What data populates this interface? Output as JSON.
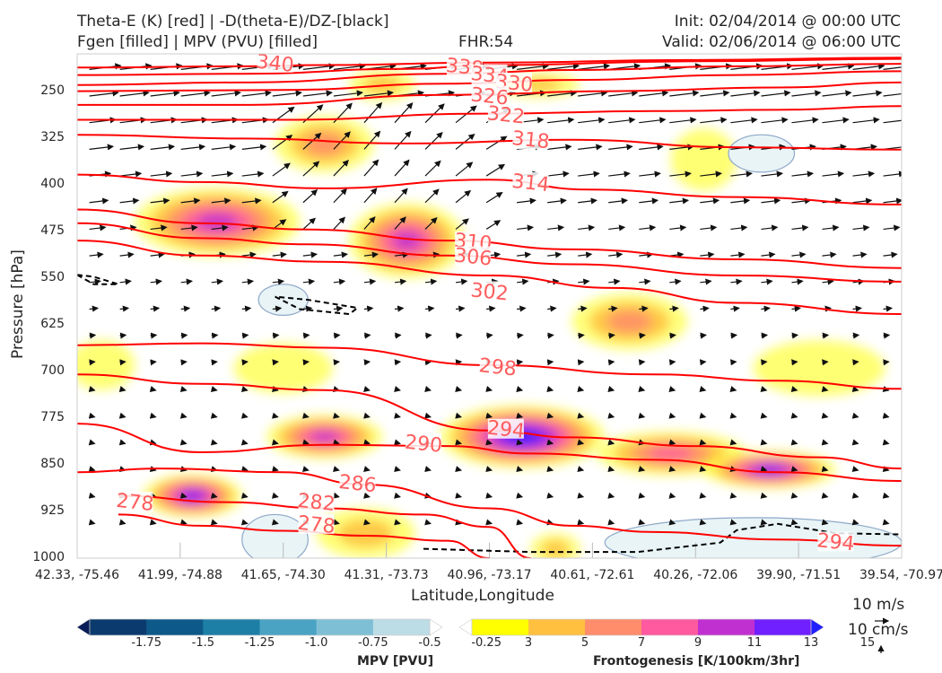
{
  "header": {
    "title_line1": "Theta-E (K) [red] | -D(theta-E)/DZ-[black]",
    "title_line2": "Fgen [filled] | MPV (PVU) [filled]",
    "fhr": "FHR:54",
    "init": "Init: 02/04/2014 @ 00:00 UTC",
    "valid": "Valid: 02/06/2014 @ 06:00 UTC"
  },
  "chart_data": {
    "type": "cross-section",
    "xlabel": "Latitude,Longitude",
    "ylabel": "Pressure [hPa]",
    "x_tick_labels": [
      "42.33, -75.46",
      "41.99, -74.88",
      "41.65, -74.30",
      "41.31, -73.73",
      "40.96, -73.17",
      "40.61, -72.61",
      "40.26, -72.06",
      "39.90, -71.51",
      "39.54, -70.97"
    ],
    "y_ticks": [
      250,
      325,
      400,
      475,
      550,
      625,
      700,
      775,
      850,
      925,
      1000
    ],
    "ylim": [
      1000,
      190
    ],
    "theta_e_contours": [
      {
        "label": "340",
        "points": [
          [
            0,
            212
          ],
          [
            0.2,
            210
          ],
          [
            0.3,
            208
          ],
          [
            0.5,
            204
          ],
          [
            0.75,
            200
          ],
          [
            1,
            196
          ]
        ]
      },
      {
        "label": "338",
        "points": [
          [
            0,
            224
          ],
          [
            0.2,
            222
          ],
          [
            0.4,
            214
          ],
          [
            0.5,
            208
          ],
          [
            0.75,
            202
          ],
          [
            1,
            198
          ]
        ]
      },
      {
        "label": "334",
        "points": [
          [
            0,
            240
          ],
          [
            0.2,
            236
          ],
          [
            0.45,
            222
          ],
          [
            0.6,
            216
          ],
          [
            0.8,
            210
          ],
          [
            1,
            206
          ]
        ]
      },
      {
        "label": "330",
        "points": [
          [
            0,
            250
          ],
          [
            0.25,
            248
          ],
          [
            0.45,
            238
          ],
          [
            0.6,
            232
          ],
          [
            0.8,
            224
          ],
          [
            1,
            218
          ]
        ]
      },
      {
        "label": "326",
        "points": [
          [
            0,
            272
          ],
          [
            0.2,
            272
          ],
          [
            0.45,
            256
          ],
          [
            0.65,
            250
          ],
          [
            0.85,
            244
          ],
          [
            1,
            236
          ]
        ]
      },
      {
        "label": "322",
        "points": [
          [
            0,
            296
          ],
          [
            0.25,
            296
          ],
          [
            0.5,
            286
          ],
          [
            0.7,
            282
          ],
          [
            0.85,
            280
          ],
          [
            1,
            274
          ]
        ]
      },
      {
        "label": "318",
        "points": [
          [
            0,
            320
          ],
          [
            0.2,
            326
          ],
          [
            0.4,
            334
          ],
          [
            0.6,
            328
          ],
          [
            0.8,
            340
          ],
          [
            1,
            344
          ]
        ]
      },
      {
        "label": "314",
        "points": [
          [
            0,
            384
          ],
          [
            0.15,
            396
          ],
          [
            0.3,
            406
          ],
          [
            0.5,
            392
          ],
          [
            0.62,
            408
          ],
          [
            0.8,
            420
          ],
          [
            1,
            432
          ]
        ]
      },
      {
        "label": "310",
        "points": [
          [
            0,
            440
          ],
          [
            0.15,
            462
          ],
          [
            0.28,
            472
          ],
          [
            0.45,
            490
          ],
          [
            0.6,
            504
          ],
          [
            0.8,
            520
          ],
          [
            1,
            534
          ]
        ]
      },
      {
        "label": "306",
        "points": [
          [
            0,
            462
          ],
          [
            0.15,
            486
          ],
          [
            0.28,
            496
          ],
          [
            0.45,
            514
          ],
          [
            0.6,
            528
          ],
          [
            0.8,
            546
          ],
          [
            1,
            556
          ]
        ]
      },
      {
        "label": "302",
        "points": [
          [
            0,
            490
          ],
          [
            0.15,
            514
          ],
          [
            0.3,
            524
          ],
          [
            0.5,
            546
          ],
          [
            0.65,
            566
          ],
          [
            0.8,
            590
          ],
          [
            1,
            608
          ]
        ]
      },
      {
        "label": "298",
        "points": [
          [
            0,
            658
          ],
          [
            0.15,
            655
          ],
          [
            0.3,
            662
          ],
          [
            0.5,
            690
          ],
          [
            0.7,
            705
          ],
          [
            0.85,
            715
          ],
          [
            1,
            728
          ]
        ]
      },
      {
        "label": "294",
        "points": [
          [
            0,
            705
          ],
          [
            0.15,
            720
          ],
          [
            0.3,
            730
          ],
          [
            0.5,
            795
          ],
          [
            0.6,
            806
          ],
          [
            0.75,
            820
          ],
          [
            0.9,
            838
          ],
          [
            1,
            856
          ]
        ]
      },
      {
        "label": "290",
        "points": [
          [
            0,
            784
          ],
          [
            0.15,
            830
          ],
          [
            0.3,
            818
          ],
          [
            0.45,
            820
          ],
          [
            0.55,
            832
          ],
          [
            0.7,
            842
          ],
          [
            0.85,
            862
          ],
          [
            1,
            876
          ]
        ]
      },
      {
        "label": "286",
        "points": [
          [
            0,
            862
          ],
          [
            0.1,
            856
          ],
          [
            0.25,
            862
          ],
          [
            0.35,
            882
          ],
          [
            0.5,
            920
          ],
          [
            0.6,
            948
          ],
          [
            0.7,
            958
          ],
          [
            0.85,
            970
          ],
          [
            1,
            980
          ]
        ]
      },
      {
        "label": "282",
        "points": [
          [
            0.05,
            900
          ],
          [
            0.18,
            910
          ],
          [
            0.3,
            920
          ],
          [
            0.42,
            930
          ],
          [
            0.5,
            950
          ],
          [
            0.55,
            1000
          ]
        ]
      },
      {
        "label": "278",
        "points": [
          [
            0.05,
            930
          ],
          [
            0.15,
            948
          ],
          [
            0.25,
            956
          ],
          [
            0.35,
            964
          ],
          [
            0.45,
            972
          ],
          [
            0.5,
            1000
          ]
        ]
      }
    ],
    "theta_e_labels": [
      {
        "text": "340",
        "x": 0.24,
        "y": 207
      },
      {
        "text": "338",
        "x": 0.47,
        "y": 213
      },
      {
        "text": "334",
        "x": 0.5,
        "y": 226
      },
      {
        "text": "330",
        "x": 0.53,
        "y": 239
      },
      {
        "text": "326",
        "x": 0.5,
        "y": 260
      },
      {
        "text": "322",
        "x": 0.52,
        "y": 290
      },
      {
        "text": "318",
        "x": 0.55,
        "y": 330
      },
      {
        "text": "314",
        "x": 0.55,
        "y": 399
      },
      {
        "text": "310",
        "x": 0.48,
        "y": 494
      },
      {
        "text": "306",
        "x": 0.48,
        "y": 518
      },
      {
        "text": "302",
        "x": 0.5,
        "y": 574
      },
      {
        "text": "298",
        "x": 0.51,
        "y": 695
      },
      {
        "text": "294",
        "x": 0.52,
        "y": 795
      },
      {
        "text": "290",
        "x": 0.42,
        "y": 818
      },
      {
        "text": "286",
        "x": 0.34,
        "y": 882
      },
      {
        "text": "282",
        "x": 0.29,
        "y": 912
      },
      {
        "text": "278",
        "x": 0.29,
        "y": 948
      },
      {
        "text": "278",
        "x": 0.07,
        "y": 912
      },
      {
        "text": "294",
        "x": 0.92,
        "y": 976
      }
    ],
    "fgen_blobs": [
      {
        "x": 0.17,
        "y": 460,
        "rx": 0.1,
        "ry": 55,
        "max": 11
      },
      {
        "x": 0.4,
        "y": 490,
        "rx": 0.07,
        "ry": 60,
        "max": 11
      },
      {
        "x": 0.3,
        "y": 335,
        "rx": 0.06,
        "ry": 45,
        "max": 7
      },
      {
        "x": 0.37,
        "y": 240,
        "rx": 0.04,
        "ry": 25,
        "max": 5
      },
      {
        "x": 0.56,
        "y": 240,
        "rx": 0.05,
        "ry": 20,
        "max": 5
      },
      {
        "x": 0.76,
        "y": 360,
        "rx": 0.04,
        "ry": 50,
        "max": 3
      },
      {
        "x": 0.67,
        "y": 620,
        "rx": 0.07,
        "ry": 45,
        "max": 7
      },
      {
        "x": 0.25,
        "y": 695,
        "rx": 0.06,
        "ry": 40,
        "max": 3
      },
      {
        "x": 0.03,
        "y": 690,
        "rx": 0.04,
        "ry": 40,
        "max": 3
      },
      {
        "x": 0.3,
        "y": 805,
        "rx": 0.07,
        "ry": 35,
        "max": 11
      },
      {
        "x": 0.54,
        "y": 805,
        "rx": 0.1,
        "ry": 50,
        "max": 15
      },
      {
        "x": 0.72,
        "y": 832,
        "rx": 0.09,
        "ry": 35,
        "max": 9
      },
      {
        "x": 0.84,
        "y": 858,
        "rx": 0.08,
        "ry": 30,
        "max": 13
      },
      {
        "x": 0.14,
        "y": 900,
        "rx": 0.06,
        "ry": 35,
        "max": 13
      },
      {
        "x": 0.35,
        "y": 960,
        "rx": 0.06,
        "ry": 40,
        "max": 5
      },
      {
        "x": 0.9,
        "y": 695,
        "rx": 0.08,
        "ry": 45,
        "max": 3
      },
      {
        "x": 0.58,
        "y": 985,
        "rx": 0.03,
        "ry": 25,
        "max": 5
      }
    ],
    "mpv_blobs": [
      {
        "x": 0.83,
        "y": 350,
        "rx": 0.04,
        "ry": 30
      },
      {
        "x": 0.25,
        "y": 585,
        "rx": 0.03,
        "ry": 25
      },
      {
        "x": 0.82,
        "y": 975,
        "rx": 0.18,
        "ry": 40
      },
      {
        "x": 0.24,
        "y": 970,
        "rx": 0.04,
        "ry": 40
      }
    ],
    "wind_vectors": {
      "u_ref": "10 m/s",
      "w_ref": "10 cm/s"
    },
    "mpv_colorbar": {
      "label": "MPV [PVU]",
      "ticks": [
        "-1.75",
        "-1.5",
        "-1.25",
        "-1.0",
        "-0.75",
        "-0.5",
        "-0.25"
      ],
      "colors": [
        "#081d58",
        "#0b3a6e",
        "#0d5a8a",
        "#1e7fa6",
        "#4aa3c3",
        "#7fbfd6",
        "#bcdde6",
        "#ffffff"
      ]
    },
    "fgen_colorbar": {
      "label": "Frontogenesis [K/100km/3hr]",
      "ticks": [
        "3",
        "5",
        "7",
        "9",
        "11",
        "13",
        "15"
      ],
      "colors": [
        "#ffffff",
        "#ffff00",
        "#ffc040",
        "#ff8c6a",
        "#ff5aa0",
        "#c030d0",
        "#7020ff",
        "#2020ff"
      ]
    }
  },
  "colors": {
    "theta_e": "#ff0000",
    "theta_e_label": "#ff5c5c",
    "vectors": "#111111",
    "ddz_contour": "#000000",
    "mpv_contour": "#8fa8c8"
  }
}
